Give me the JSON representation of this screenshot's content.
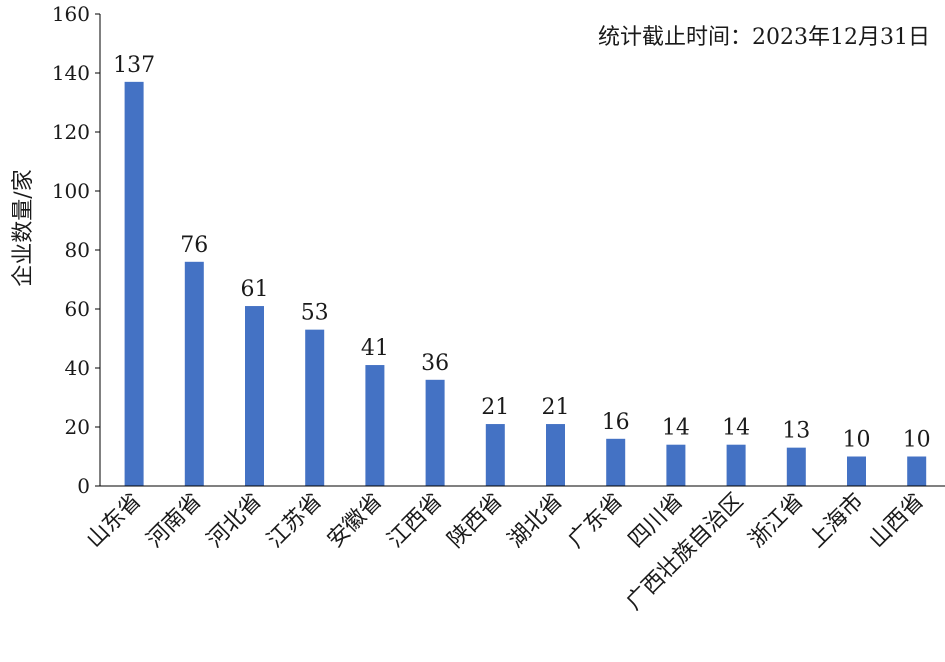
{
  "chart_data": {
    "type": "bar",
    "ylabel": "企业数量/家",
    "annotation": "统计截止时间：2023年12月31日",
    "ylim": [
      0,
      160
    ],
    "yticks": [
      "0",
      "20",
      "40",
      "60",
      "80",
      "100",
      "120",
      "140",
      "160"
    ],
    "grid": false,
    "bar_color": "#4472C4",
    "categories": [
      "山东省",
      "河南省",
      "河北省",
      "江苏省",
      "安徽省",
      "江西省",
      "陕西省",
      "湖北省",
      "广东省",
      "四川省",
      "广西壮族自治区",
      "浙江省",
      "上海市",
      "山西省"
    ],
    "values": [
      137,
      76,
      61,
      53,
      41,
      36,
      21,
      21,
      16,
      14,
      14,
      13,
      10,
      10
    ]
  }
}
